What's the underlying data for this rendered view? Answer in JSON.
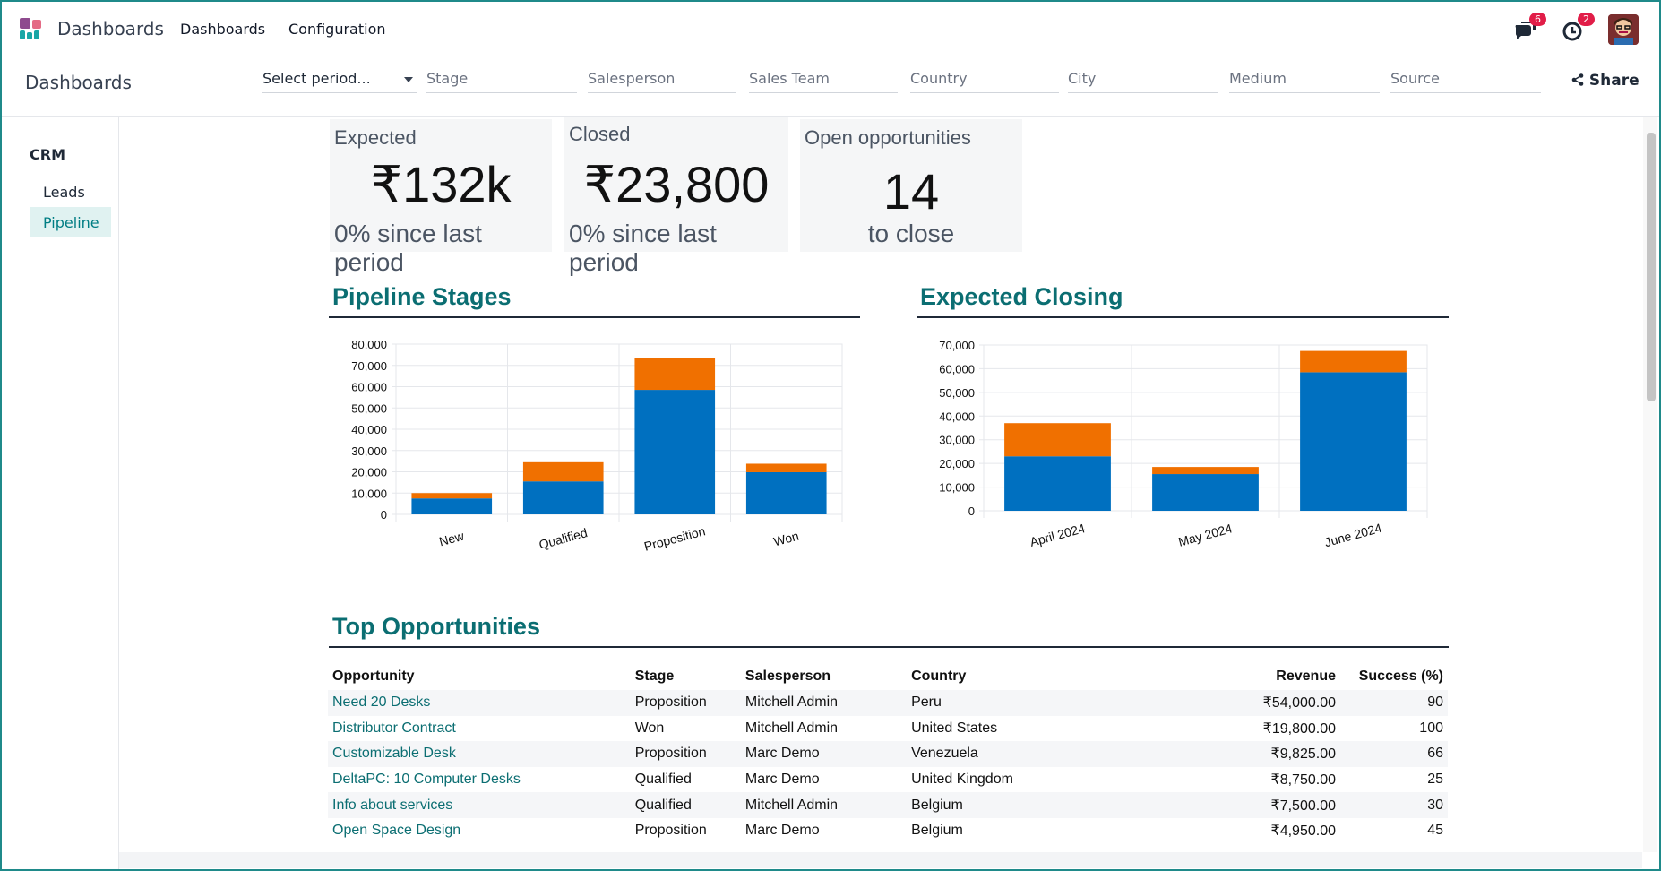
{
  "app": {
    "name": "Dashboards"
  },
  "topnav": [
    {
      "label": "Dashboards"
    },
    {
      "label": "Configuration"
    }
  ],
  "notifications": {
    "messages_count": "6",
    "activities_count": "2"
  },
  "breadcrumb": "Dashboards",
  "filters": {
    "period": "Select period...",
    "stage": "Stage",
    "salesperson": "Salesperson",
    "sales_team": "Sales Team",
    "country": "Country",
    "city": "City",
    "medium": "Medium",
    "source": "Source"
  },
  "share_label": "Share",
  "sidebar": {
    "title": "CRM",
    "items": [
      {
        "label": "Leads"
      },
      {
        "label": "Pipeline"
      }
    ]
  },
  "kpis": [
    {
      "label": "Expected",
      "value": "₹132k",
      "sub": "0% since last period"
    },
    {
      "label": "Closed",
      "value": "₹23,800",
      "sub": "0% since last period"
    },
    {
      "label": "Open opportunities",
      "value": "14",
      "sub": "to close"
    }
  ],
  "sections": {
    "pipeline": "Pipeline Stages",
    "closing": "Expected Closing",
    "top": "Top Opportunities"
  },
  "colors": {
    "series_a": "#0070c0",
    "series_b": "#f07000",
    "accent": "#0b6e72"
  },
  "chart_data": [
    {
      "type": "bar",
      "stacked": true,
      "categories": [
        "New",
        "Qualified",
        "Proposition",
        "Won"
      ],
      "series": [
        {
          "values": [
            7500,
            15500,
            58500,
            19800
          ]
        },
        {
          "values": [
            2500,
            9000,
            15000,
            4000
          ]
        }
      ],
      "ylim": [
        0,
        80000
      ],
      "yticks": [
        "0",
        "10,000",
        "20,000",
        "30,000",
        "40,000",
        "50,000",
        "60,000",
        "70,000",
        "80,000"
      ],
      "grid": true
    },
    {
      "type": "bar",
      "stacked": true,
      "categories": [
        "April 2024",
        "May 2024",
        "June 2024"
      ],
      "series": [
        {
          "values": [
            23000,
            15500,
            58500
          ]
        },
        {
          "values": [
            14000,
            3000,
            9000
          ]
        }
      ],
      "ylim": [
        0,
        70000
      ],
      "yticks": [
        "0",
        "10,000",
        "20,000",
        "30,000",
        "40,000",
        "50,000",
        "60,000",
        "70,000"
      ],
      "grid": true
    }
  ],
  "table": {
    "headers": [
      "Opportunity",
      "Stage",
      "Salesperson",
      "Country",
      "Revenue",
      "Success (%)"
    ],
    "rows": [
      [
        "Need 20 Desks",
        "Proposition",
        "Mitchell Admin",
        "Peru",
        "₹54,000.00",
        "90"
      ],
      [
        "Distributor Contract",
        "Won",
        "Mitchell Admin",
        "United States",
        "₹19,800.00",
        "100"
      ],
      [
        "Customizable Desk",
        "Proposition",
        "Marc Demo",
        "Venezuela",
        "₹9,825.00",
        "66"
      ],
      [
        "DeltaPC: 10 Computer Desks",
        "Qualified",
        "Marc Demo",
        "United Kingdom",
        "₹8,750.00",
        "25"
      ],
      [
        "Info about services",
        "Qualified",
        "Mitchell Admin",
        "Belgium",
        "₹7,500.00",
        "30"
      ],
      [
        "Open Space Design",
        "Proposition",
        "Marc Demo",
        "Belgium",
        "₹4,950.00",
        "45"
      ]
    ]
  }
}
